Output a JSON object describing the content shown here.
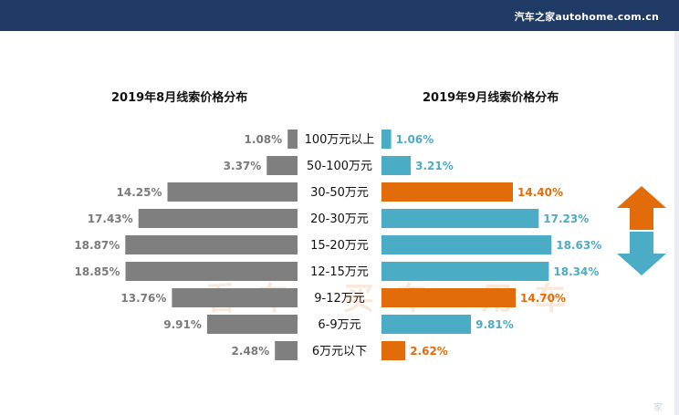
{
  "header": {
    "brand": "汽车之家autohome.com.cn"
  },
  "colors": {
    "header_bg": "#1f3a64",
    "left_bar": "#7f7f7f",
    "right_normal": "#4bacc6",
    "right_highlight": "#e36c0a",
    "arrow_up": "#e36c0a",
    "arrow_down": "#4bacc6"
  },
  "watermark": {
    "text": "看车 买车 用车"
  },
  "corner_mark": {
    "text": "家"
  },
  "chart_data": {
    "type": "bar",
    "orientation": "horizontal-butterfly",
    "categories": [
      "100万元以上",
      "50-100万元",
      "30-50万元",
      "20-30万元",
      "15-20万元",
      "12-15万元",
      "9-12万元",
      "6-9万元",
      "6万元以下"
    ],
    "series": [
      {
        "name": "2019年8月线索价格分布",
        "values": [
          1.08,
          3.37,
          14.25,
          17.43,
          18.87,
          18.85,
          13.76,
          9.91,
          2.48
        ],
        "labels": [
          "1.08%",
          "3.37%",
          "14.25%",
          "17.43%",
          "18.87%",
          "18.85%",
          "13.76%",
          "9.91%",
          "2.48%"
        ]
      },
      {
        "name": "2019年9月线索价格分布",
        "values": [
          1.06,
          3.21,
          14.4,
          17.23,
          18.63,
          18.34,
          14.7,
          9.81,
          2.62
        ],
        "labels": [
          "1.06%",
          "3.21%",
          "14.40%",
          "17.23%",
          "18.63%",
          "18.34%",
          "14.70%",
          "9.81%",
          "2.62%"
        ],
        "highlight": [
          false,
          false,
          true,
          false,
          false,
          false,
          true,
          false,
          true
        ]
      }
    ],
    "unit": "%",
    "xlim": [
      0,
      20
    ]
  }
}
